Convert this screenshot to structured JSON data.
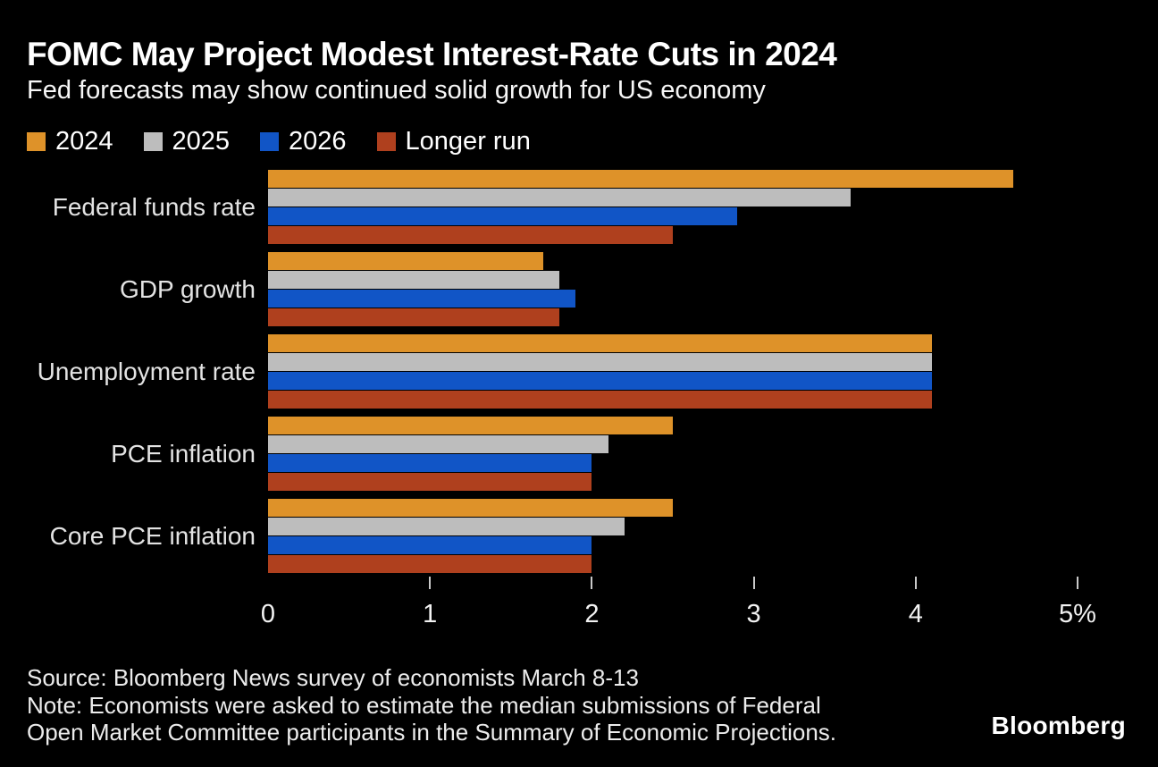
{
  "title": "FOMC May Project Modest Interest-Rate Cuts in 2024",
  "subtitle": "Fed forecasts may show continued solid growth for US economy",
  "colors": {
    "background": "#000000",
    "bar_2024": "#DE9229",
    "bar_2025": "#BDBDBD",
    "bar_2026": "#1155C6",
    "bar_longer_run": "#AF401E",
    "tick": "#C9C9C9",
    "text": "#FFFFFF"
  },
  "legend": [
    {
      "label": "2024",
      "color": "#DE9229"
    },
    {
      "label": "2025",
      "color": "#BDBDBD"
    },
    {
      "label": "2026",
      "color": "#1155C6"
    },
    {
      "label": "Longer run",
      "color": "#AF401E"
    }
  ],
  "chart_data": {
    "type": "bar",
    "orientation": "horizontal",
    "title": "FOMC May Project Modest Interest-Rate Cuts in 2024",
    "subtitle": "Fed forecasts may show continued solid growth for US economy",
    "categories": [
      "Federal funds rate",
      "GDP growth",
      "Unemployment rate",
      "PCE inflation",
      "Core PCE inflation"
    ],
    "series": [
      {
        "name": "2024",
        "color": "#DE9229",
        "values": [
          4.6,
          1.7,
          4.1,
          2.5,
          2.5
        ]
      },
      {
        "name": "2025",
        "color": "#BDBDBD",
        "values": [
          3.6,
          1.8,
          4.1,
          2.1,
          2.2
        ]
      },
      {
        "name": "2026",
        "color": "#1155C6",
        "values": [
          2.9,
          1.9,
          4.1,
          2.0,
          2.0
        ]
      },
      {
        "name": "Longer run",
        "color": "#AF401E",
        "values": [
          2.5,
          1.8,
          4.1,
          2.0,
          2.0
        ]
      }
    ],
    "xlabel": "",
    "ylabel": "",
    "xlim": [
      0,
      5
    ],
    "x_ticks": [
      0,
      1,
      2,
      3,
      4,
      5
    ],
    "x_tick_labels": [
      "0",
      "1",
      "2",
      "3",
      "4",
      "5%"
    ],
    "grid": false,
    "legend_position": "top-left",
    "unit": "percent"
  },
  "footer": {
    "source": "Source: Bloomberg News survey of economists March 8-13",
    "note_line1": "Note: Economists were asked to estimate the median submissions of Federal",
    "note_line2": "Open Market Committee participants in the Summary of Economic Projections.",
    "brand": "Bloomberg"
  }
}
